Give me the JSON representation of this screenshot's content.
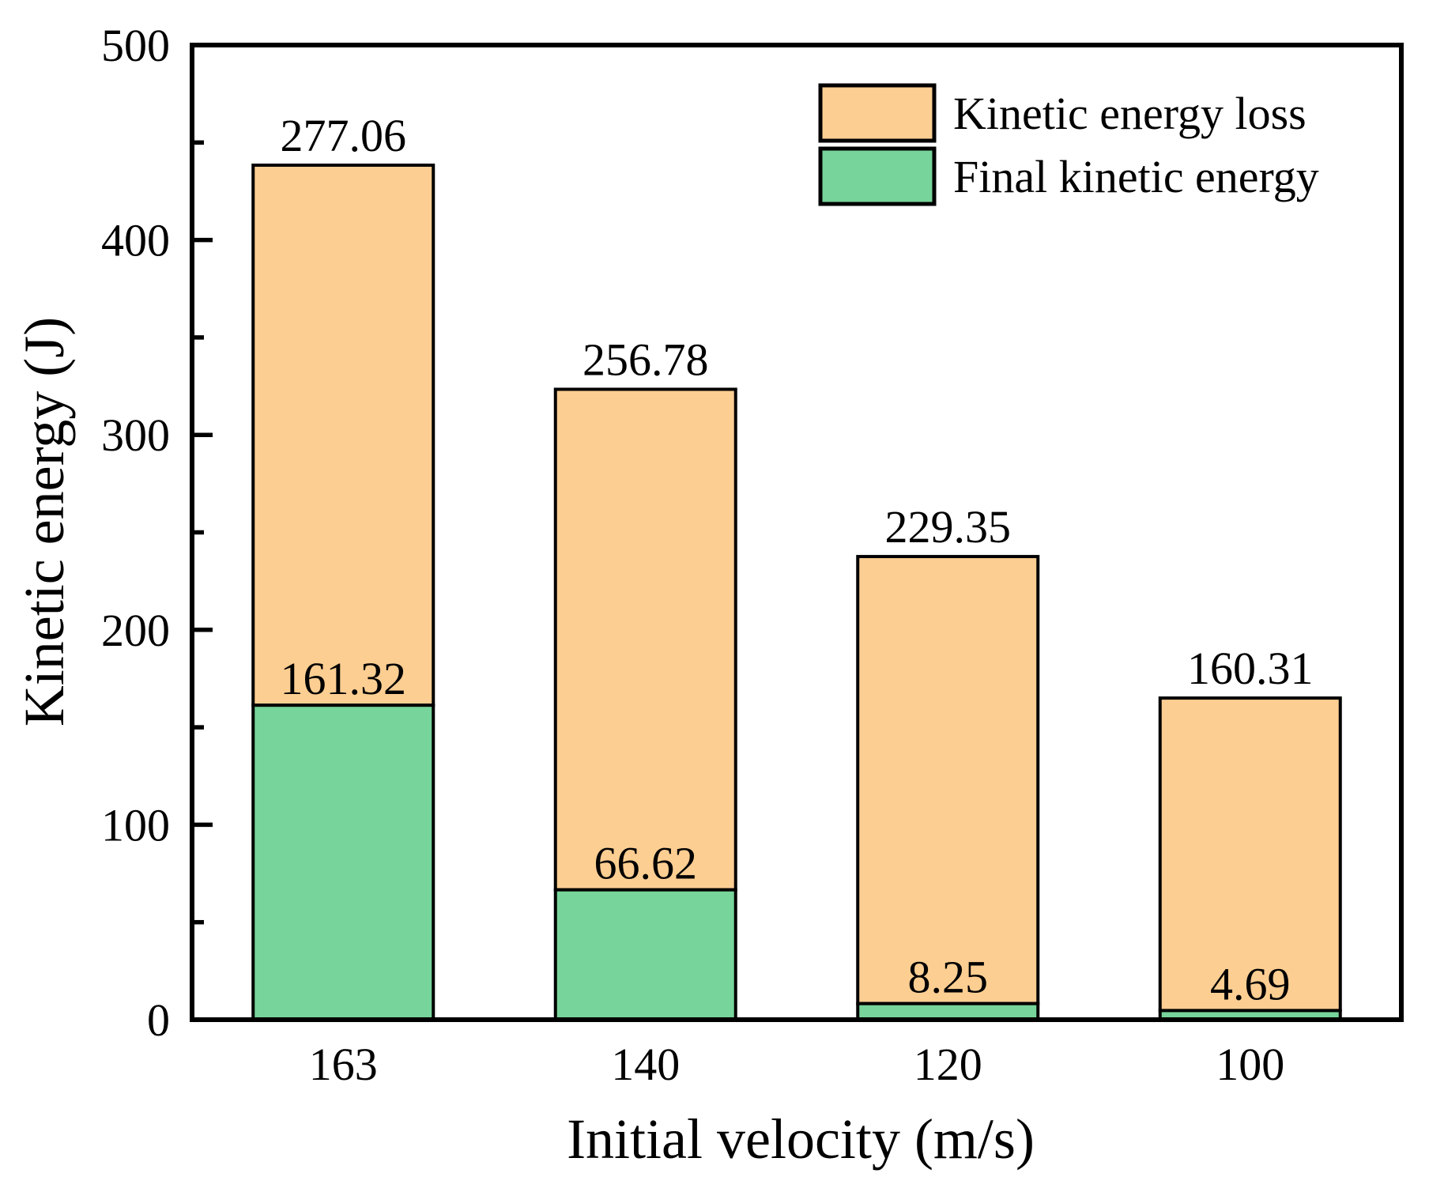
{
  "figure": {
    "background": "#ffffff",
    "axis_color": "#000000"
  },
  "chart_data": {
    "type": "bar",
    "stacked": true,
    "title": "",
    "xlabel": "Initial velocity (m/s)",
    "ylabel": "Kinetic energy (J)",
    "categories": [
      "163",
      "140",
      "120",
      "100"
    ],
    "series": [
      {
        "name": "Final kinetic energy",
        "color": "#77D49A",
        "values": [
          161.32,
          66.62,
          8.25,
          4.69
        ]
      },
      {
        "name": "Kinetic energy loss",
        "color": "#FDCE92",
        "values": [
          277.06,
          256.78,
          229.35,
          160.31
        ]
      }
    ],
    "bar_value_labels": {
      "loss_above_bar": [
        "277.06",
        "256.78",
        "229.35",
        "160.31"
      ],
      "final_inside_bar": [
        "161.32",
        "66.62",
        "8.25",
        "4.69"
      ]
    },
    "ylim": [
      0,
      500
    ],
    "ytick_labels": [
      "0",
      "100",
      "200",
      "300",
      "400",
      "500"
    ],
    "ytick_major_step": 100,
    "ytick_minor_step": 50,
    "grid": false,
    "bar_edge_color": "#000000",
    "legend_position": "top-right-inside",
    "legend": {
      "entries": [
        {
          "label": "Kinetic energy loss",
          "color": "#FDCE92"
        },
        {
          "label": "Final kinetic energy",
          "color": "#77D49A"
        }
      ]
    }
  }
}
